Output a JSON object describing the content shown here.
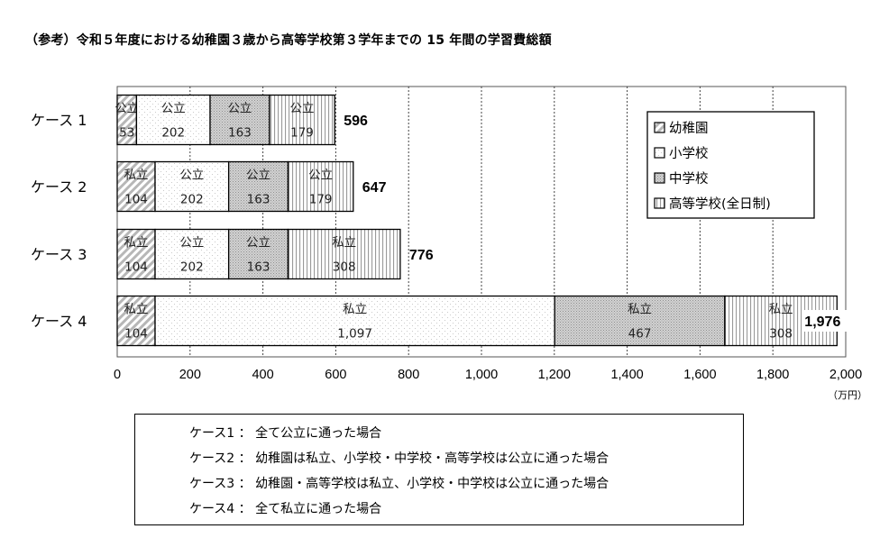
{
  "title": "（参考）令和５年度における幼稚園３歳から高等学校第３学年までの 15 年間の学習費総額",
  "chart_data": {
    "type": "bar",
    "orientation": "horizontal",
    "stacked": true,
    "categories": [
      "ケース 1",
      "ケース 2",
      "ケース 3",
      "ケース 4"
    ],
    "series": [
      {
        "name": "幼稚園",
        "values": [
          53,
          104,
          104,
          104
        ],
        "labels": [
          "公立",
          "私立",
          "私立",
          "私立"
        ]
      },
      {
        "name": "小学校",
        "values": [
          202,
          202,
          202,
          1097
        ],
        "labels": [
          "公立",
          "公立",
          "公立",
          "私立"
        ]
      },
      {
        "name": "中学校",
        "values": [
          163,
          163,
          163,
          467
        ],
        "labels": [
          "公立",
          "公立",
          "公立",
          "私立"
        ]
      },
      {
        "name": "高等学校(全日制)",
        "values": [
          179,
          179,
          308,
          308
        ],
        "labels": [
          "公立",
          "公立",
          "私立",
          "私立"
        ]
      }
    ],
    "value_labels": [
      [
        "53",
        "202",
        "163",
        "179"
      ],
      [
        "104",
        "202",
        "163",
        "179"
      ],
      [
        "104",
        "202",
        "163",
        "308"
      ],
      [
        "104",
        "1,097",
        "467",
        "308"
      ]
    ],
    "totals": [
      "596",
      "647",
      "776",
      "1,976"
    ],
    "xlim": [
      0,
      2000
    ],
    "xticks": [
      "0",
      "200",
      "400",
      "600",
      "800",
      "1,000",
      "1,200",
      "1,400",
      "1,600",
      "1,800",
      "2,000"
    ],
    "xunit": "（万円）",
    "grid": "vertical dashed",
    "legend_position": "right"
  },
  "notes": [
    "ケース1 ： 全て公立に通った場合",
    "ケース2 ： 幼稚園は私立、小学校・中学校・高等学校は公立に通った場合",
    "ケース3 ： 幼稚園・高等学校は私立、小学校・中学校は公立に通った場合",
    "ケース4 ： 全て私立に通った場合"
  ]
}
